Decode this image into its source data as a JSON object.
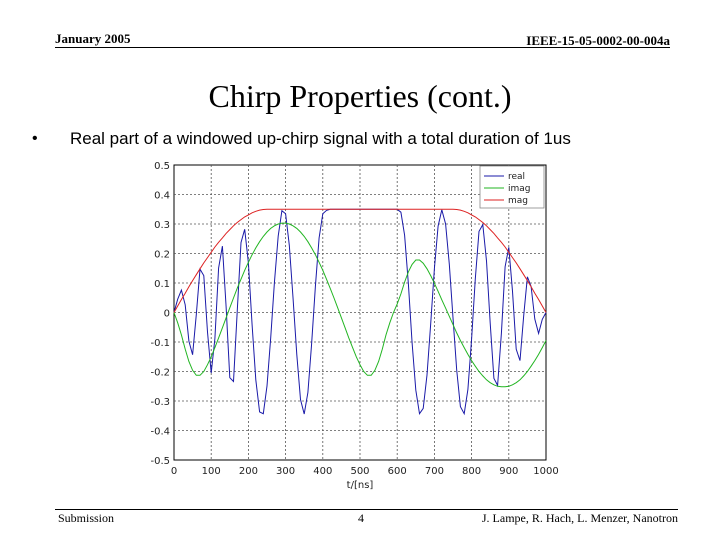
{
  "header": {
    "date": "January 2005",
    "doc_id": "IEEE-15-05-0002-00-004a"
  },
  "slide": {
    "title": "Chirp Properties (cont.)",
    "bullet_symbol": "•",
    "bullet_text": "Real part of a windowed up-chirp signal with a total duration of 1us"
  },
  "footer": {
    "left": "Submission",
    "page": "4",
    "authors": "J. Lampe, R. Hach, L. Menzer, Nanotron"
  },
  "colors": {
    "real": "#1a1aa8",
    "imag": "#22b522",
    "mag": "#dd2222",
    "grid": "#555555"
  },
  "chart_data": {
    "type": "line",
    "xlabel": "t/[ns]",
    "ylabel": "",
    "xlim": [
      0,
      1000
    ],
    "ylim": [
      -0.5,
      0.5
    ],
    "xticks": [
      "0",
      "100",
      "200",
      "300",
      "400",
      "500",
      "600",
      "700",
      "800",
      "900",
      "1000"
    ],
    "yticks": [
      "0.5",
      "0.4",
      "0.3",
      "0.2",
      "0.1",
      "0",
      "-0.1",
      "-0.2",
      "-0.3",
      "-0.4",
      "-0.5"
    ],
    "grid": true,
    "legend_position": "top-right",
    "series": [
      {
        "name": "real",
        "x": [
          0,
          10,
          20,
          30,
          40,
          50,
          60,
          70,
          80,
          90,
          100,
          110,
          120,
          130,
          140,
          150,
          160,
          170,
          180,
          190,
          200,
          210,
          220,
          230,
          240,
          250,
          260,
          270,
          280,
          290,
          300,
          310,
          320,
          330,
          340,
          350,
          360,
          370,
          380,
          390,
          400,
          410,
          420,
          430,
          440,
          450,
          460,
          470,
          480,
          490,
          500,
          510,
          520,
          530,
          540,
          550,
          560,
          570,
          580,
          590,
          600,
          610,
          620,
          630,
          640,
          650,
          660,
          670,
          680,
          690,
          700,
          710,
          720,
          730,
          740,
          750,
          760,
          770,
          780,
          790,
          800,
          810,
          820,
          830,
          840,
          850,
          860,
          870,
          880,
          890,
          900,
          910,
          920,
          930,
          940,
          950,
          960,
          970,
          980,
          990,
          1000
        ],
        "y": [
          0.0,
          0.045,
          0.076,
          0.026,
          -0.097,
          -0.143,
          -0.007,
          0.147,
          0.125,
          -0.066,
          -0.205,
          -0.088,
          0.151,
          0.225,
          0.02,
          -0.221,
          -0.234,
          0.002,
          0.237,
          0.282,
          0.168,
          -0.042,
          -0.228,
          -0.337,
          -0.343,
          -0.249,
          -0.086,
          0.101,
          0.259,
          0.345,
          0.335,
          0.228,
          0.051,
          -0.143,
          -0.295,
          -0.344,
          -0.271,
          -0.107,
          0.089,
          0.253,
          0.335,
          0.346,
          0.35,
          0.35,
          0.35,
          0.35,
          0.35,
          0.35,
          0.35,
          0.35,
          0.35,
          0.35,
          0.35,
          0.35,
          0.35,
          0.35,
          0.35,
          0.35,
          0.35,
          0.35,
          0.35,
          0.34,
          0.262,
          0.096,
          -0.103,
          -0.263,
          -0.343,
          -0.325,
          -0.212,
          -0.038,
          0.149,
          0.293,
          0.348,
          0.3,
          0.164,
          -0.018,
          -0.195,
          -0.319,
          -0.343,
          -0.261,
          -0.09,
          0.114,
          0.275,
          0.298,
          0.175,
          -0.036,
          -0.223,
          -0.247,
          -0.07,
          0.155,
          0.221,
          0.072,
          -0.124,
          -0.163,
          -0.011,
          0.121,
          0.088,
          -0.022,
          -0.071,
          -0.023,
          0.0
        ]
      },
      {
        "name": "imag",
        "x": [
          0,
          10,
          20,
          30,
          40,
          50,
          60,
          70,
          80,
          90,
          100,
          110,
          120,
          130,
          140,
          150,
          160,
          170,
          180,
          190,
          200,
          210,
          220,
          230,
          240,
          250,
          260,
          270,
          280,
          290,
          300,
          310,
          320,
          330,
          340,
          350,
          360,
          370,
          380,
          390,
          400,
          410,
          420,
          430,
          440,
          450,
          460,
          470,
          480,
          490,
          500,
          510,
          520,
          530,
          540,
          550,
          560,
          570,
          580,
          590,
          600,
          610,
          620,
          630,
          640,
          650,
          660,
          670,
          680,
          690,
          700,
          710,
          720,
          730,
          740,
          750,
          760,
          770,
          780,
          790,
          800,
          810,
          820,
          830,
          840,
          850,
          860,
          870,
          880,
          890,
          900,
          910,
          920,
          930,
          940,
          950,
          960,
          970,
          980,
          990,
          1000
        ],
        "y": [
          0.0,
          -0.035,
          -0.076,
          -0.124,
          -0.166,
          -0.196,
          -0.213,
          -0.213,
          -0.2,
          -0.177,
          -0.15,
          -0.119,
          -0.086,
          -0.052,
          -0.018,
          0.016,
          0.049,
          0.082,
          0.113,
          0.143,
          0.17,
          0.196,
          0.219,
          0.24,
          0.258,
          0.273,
          0.285,
          0.294,
          0.3,
          0.303,
          0.303,
          0.3,
          0.294,
          0.285,
          0.273,
          0.258,
          0.24,
          0.219,
          0.196,
          0.17,
          0.143,
          0.113,
          0.082,
          0.049,
          0.016,
          -0.018,
          -0.052,
          -0.086,
          -0.119,
          -0.15,
          -0.177,
          -0.2,
          -0.213,
          -0.213,
          -0.196,
          -0.166,
          -0.124,
          -0.076,
          -0.035,
          0.0,
          0.029,
          0.063,
          0.103,
          0.138,
          0.163,
          0.178,
          0.178,
          0.167,
          0.148,
          0.125,
          0.099,
          0.072,
          0.043,
          0.015,
          -0.013,
          -0.041,
          -0.069,
          -0.095,
          -0.119,
          -0.142,
          -0.163,
          -0.182,
          -0.2,
          -0.215,
          -0.228,
          -0.238,
          -0.245,
          -0.25,
          -0.252,
          -0.252,
          -0.25,
          -0.245,
          -0.238,
          -0.228,
          -0.215,
          -0.2,
          -0.182,
          -0.163,
          -0.142,
          -0.119,
          -0.095
        ]
      },
      {
        "name": "mag",
        "x": [
          0,
          10,
          20,
          30,
          40,
          50,
          60,
          70,
          80,
          90,
          100,
          110,
          120,
          130,
          140,
          150,
          160,
          170,
          180,
          190,
          200,
          210,
          220,
          230,
          240,
          250,
          260,
          270,
          280,
          290,
          300,
          310,
          320,
          330,
          340,
          350,
          360,
          370,
          380,
          390,
          400,
          410,
          420,
          430,
          440,
          450,
          460,
          470,
          480,
          490,
          500,
          510,
          520,
          530,
          540,
          550,
          560,
          570,
          580,
          590,
          600,
          610,
          620,
          630,
          640,
          650,
          660,
          670,
          680,
          690,
          700,
          710,
          720,
          730,
          740,
          750,
          760,
          770,
          780,
          790,
          800,
          810,
          820,
          830,
          840,
          850,
          860,
          870,
          880,
          890,
          900,
          910,
          920,
          930,
          940,
          950,
          960,
          970,
          980,
          990,
          1000
        ],
        "y": [
          0.0,
          0.022,
          0.044,
          0.065,
          0.087,
          0.108,
          0.128,
          0.148,
          0.168,
          0.186,
          0.204,
          0.222,
          0.238,
          0.253,
          0.268,
          0.281,
          0.294,
          0.305,
          0.315,
          0.324,
          0.331,
          0.338,
          0.343,
          0.347,
          0.349,
          0.35,
          0.35,
          0.35,
          0.35,
          0.35,
          0.35,
          0.35,
          0.35,
          0.35,
          0.35,
          0.35,
          0.35,
          0.35,
          0.35,
          0.35,
          0.35,
          0.35,
          0.35,
          0.35,
          0.35,
          0.35,
          0.35,
          0.35,
          0.35,
          0.35,
          0.35,
          0.35,
          0.35,
          0.35,
          0.35,
          0.35,
          0.35,
          0.35,
          0.35,
          0.35,
          0.35,
          0.35,
          0.35,
          0.35,
          0.35,
          0.35,
          0.35,
          0.35,
          0.35,
          0.35,
          0.35,
          0.35,
          0.35,
          0.35,
          0.35,
          0.35,
          0.349,
          0.347,
          0.343,
          0.338,
          0.331,
          0.324,
          0.315,
          0.305,
          0.294,
          0.281,
          0.268,
          0.253,
          0.238,
          0.222,
          0.204,
          0.186,
          0.168,
          0.148,
          0.128,
          0.108,
          0.087,
          0.065,
          0.044,
          0.022,
          0.0
        ]
      }
    ]
  }
}
